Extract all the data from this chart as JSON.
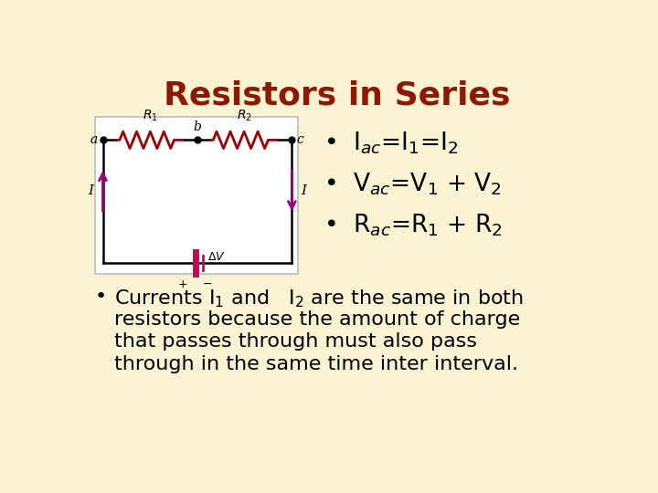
{
  "title": "Resistors in Series",
  "title_color": "#8B1A00",
  "bg_color": "#FAF3D3",
  "circuit_bg": "#FFFFFF",
  "bullet_color": "#000000",
  "resistor_color": "#990000",
  "wire_color": "#000000",
  "arrow_color": "#990077",
  "equations": [
    "I$_{ac}$=I$_1$=I$_2$",
    "V$_{ac}$=V$_1$ + V$_2$",
    "R$_{ac}$=R$_1$ + R$_2$"
  ],
  "bottom_text_line1": "Currents I$_1$ and   I$_2$ are the same in both",
  "bottom_text_line2": "resistors because the amount of charge",
  "bottom_text_line3": "that passes through must also pass",
  "bottom_text_line4": "through in the same time inter interval.",
  "font_size_title": 26,
  "font_size_eq": 19,
  "font_size_body": 16,
  "font_size_label": 10
}
